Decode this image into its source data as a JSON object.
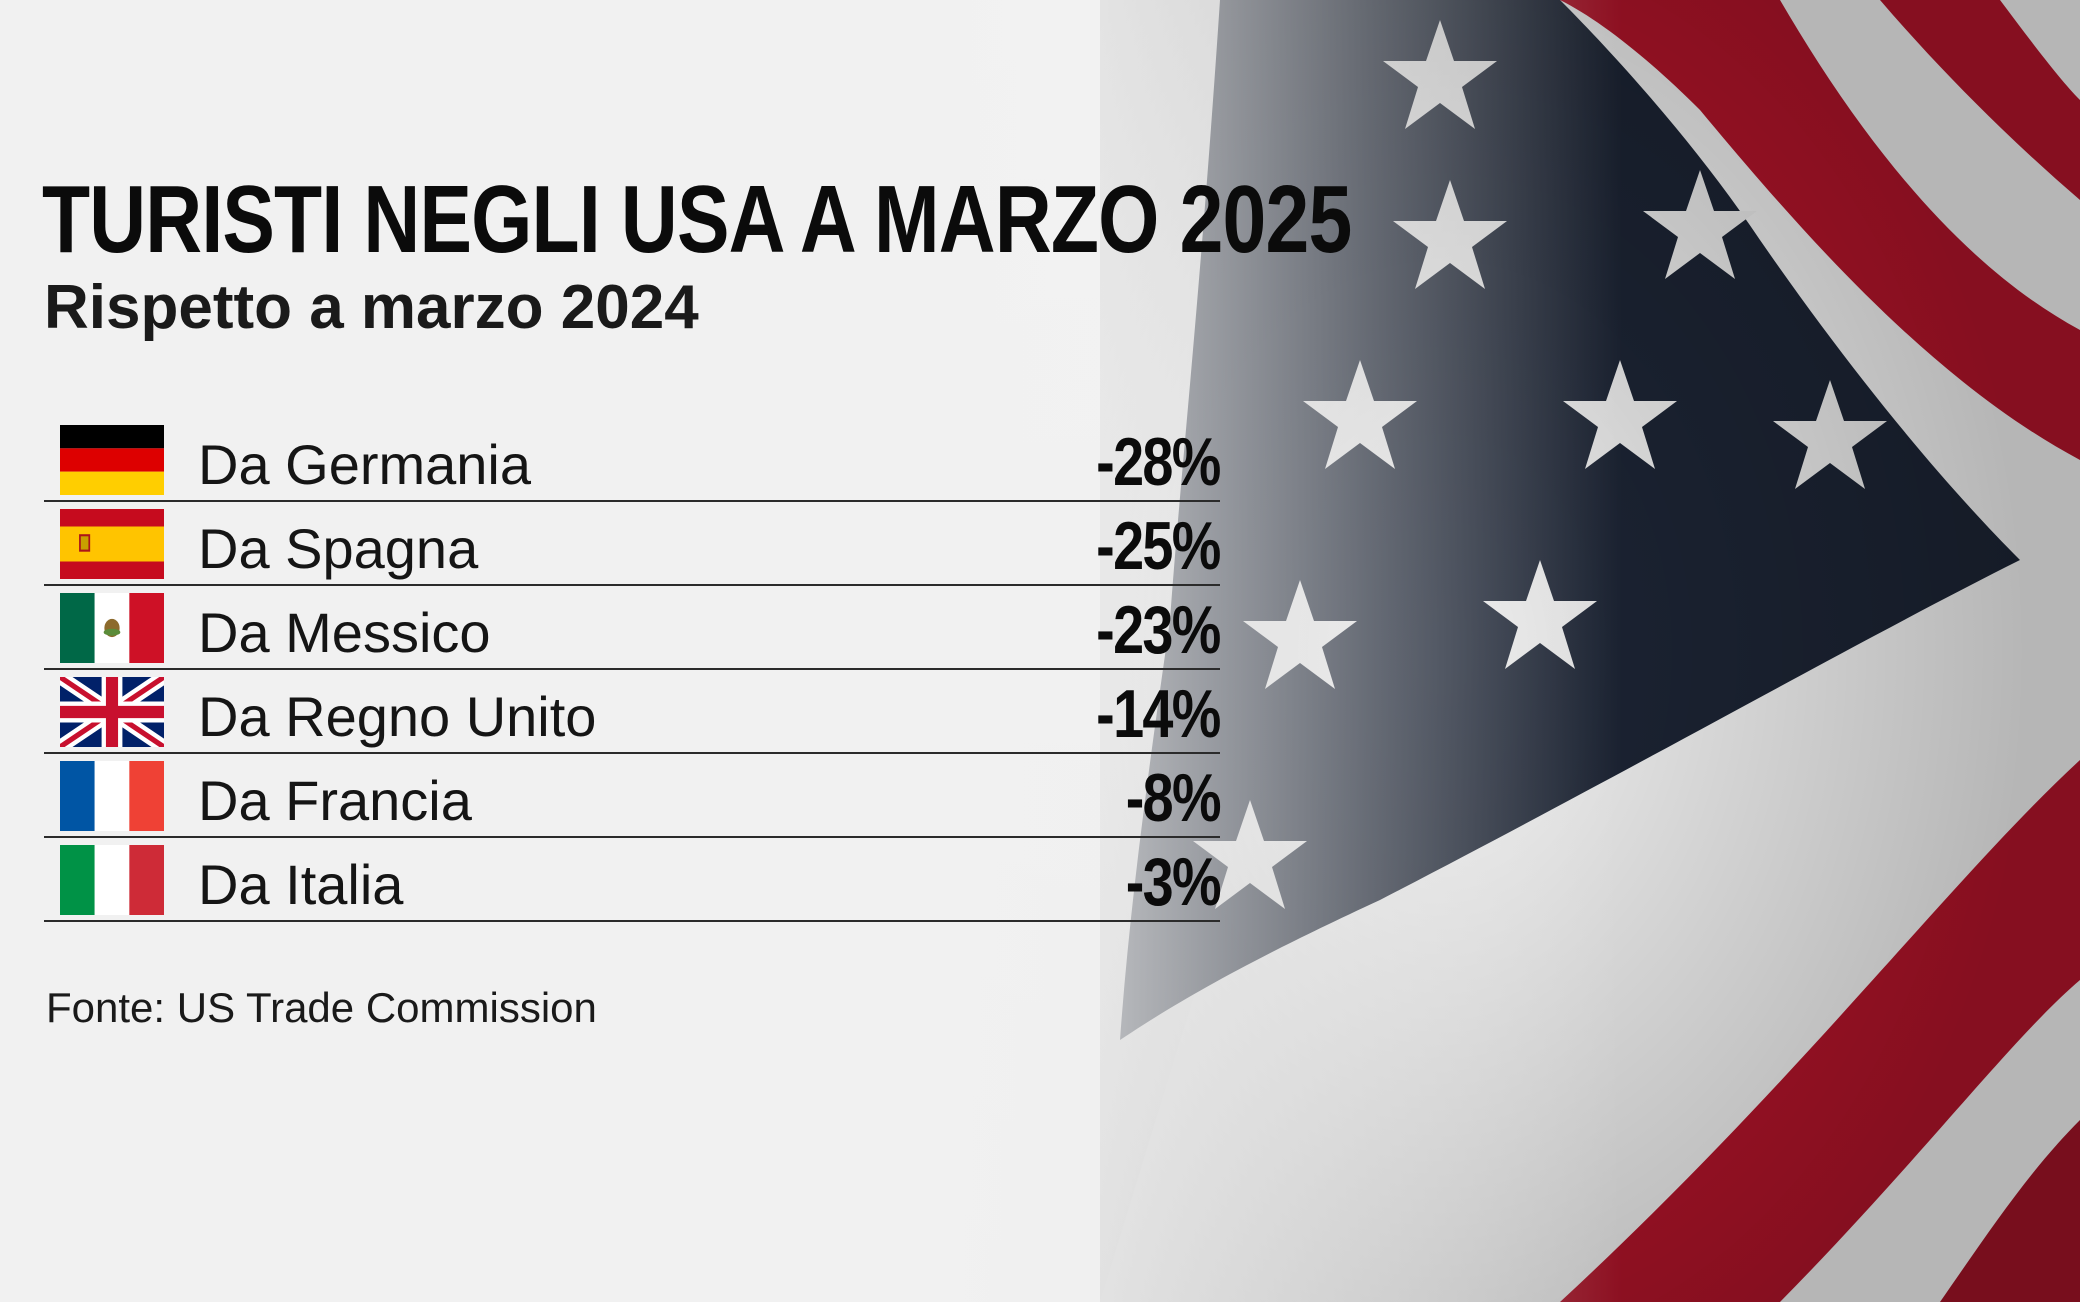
{
  "chart_data": {
    "type": "table",
    "title": "TURISTI NEGLI USA A MARZO 2025",
    "subtitle": "Rispetto a marzo 2024",
    "rows": [
      {
        "flag": "germany-flag",
        "label": "Da Germania",
        "value": -28,
        "value_label": "-28%"
      },
      {
        "flag": "spain-flag",
        "label": "Da Spagna",
        "value": -25,
        "value_label": "-25%"
      },
      {
        "flag": "mexico-flag",
        "label": "Da Messico",
        "value": -23,
        "value_label": "-23%"
      },
      {
        "flag": "uk-flag",
        "label": "Da Regno Unito",
        "value": -14,
        "value_label": "-14%"
      },
      {
        "flag": "france-flag",
        "label": "Da Francia",
        "value": -8,
        "value_label": "-8%"
      },
      {
        "flag": "italy-flag",
        "label": "Da Italia",
        "value": -3,
        "value_label": "-3%"
      }
    ],
    "source": "Fonte: US Trade Commission"
  },
  "background": {
    "image": "us-flag-icon",
    "colors": {
      "red": "#b3142a",
      "blue": "#1c2434",
      "white": "#f4f4f4"
    }
  }
}
